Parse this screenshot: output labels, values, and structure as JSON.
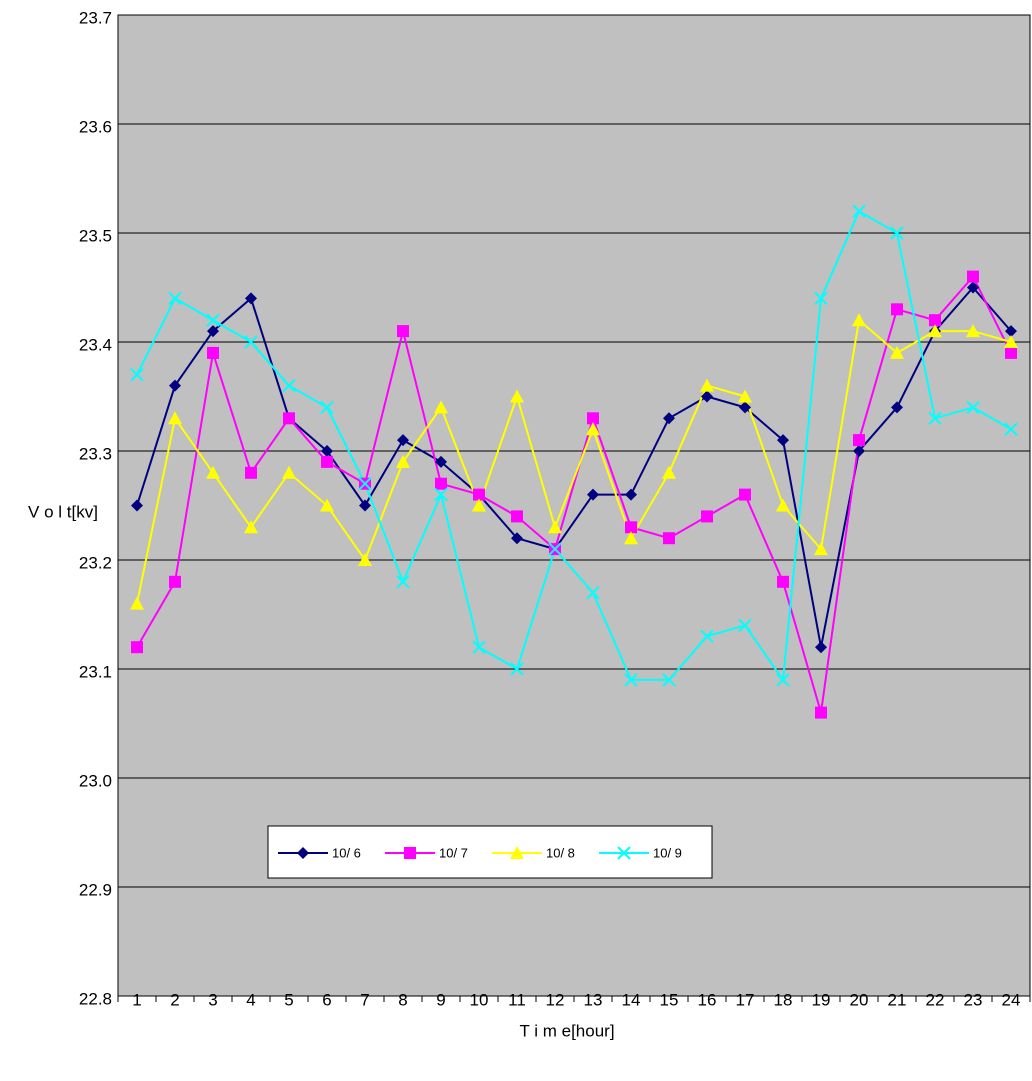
{
  "chart_data": {
    "type": "line",
    "x_label": "T i m e[hour]",
    "y_label": "V o l t[kv]",
    "categories": [
      "1",
      "2",
      "3",
      "4",
      "5",
      "6",
      "7",
      "8",
      "9",
      "10",
      "11",
      "12",
      "13",
      "14",
      "15",
      "16",
      "17",
      "18",
      "19",
      "20",
      "21",
      "22",
      "23",
      "24"
    ],
    "ylim": [
      22.8,
      23.7
    ],
    "yticks": [
      22.8,
      22.9,
      {
        "value": 23,
        "label": "23.0"
      },
      23.1,
      23.2,
      23.3,
      23.4,
      23.5,
      23.6,
      23.7
    ],
    "grid": true,
    "series": [
      {
        "name": "10/ 6",
        "color": "#000080",
        "marker": "diamond",
        "values": [
          23.25,
          23.36,
          23.41,
          23.44,
          23.33,
          23.3,
          23.25,
          23.31,
          23.29,
          23.26,
          23.22,
          23.21,
          23.26,
          23.26,
          23.33,
          23.35,
          23.34,
          23.31,
          23.12,
          23.3,
          23.34,
          23.41,
          23.45,
          23.41
        ]
      },
      {
        "name": "10/ 7",
        "color": "#ff00ff",
        "marker": "square",
        "values": [
          23.12,
          23.18,
          23.39,
          23.28,
          23.33,
          23.29,
          23.27,
          23.41,
          23.27,
          23.26,
          23.24,
          23.21,
          23.33,
          23.23,
          23.22,
          23.24,
          23.26,
          23.18,
          23.06,
          23.31,
          23.43,
          23.42,
          23.46,
          23.39
        ]
      },
      {
        "name": "10/ 8",
        "color": "#ffff00",
        "marker": "triangle",
        "values": [
          23.16,
          23.33,
          23.28,
          23.23,
          23.28,
          23.25,
          23.2,
          23.29,
          23.34,
          23.25,
          23.35,
          23.23,
          23.32,
          23.22,
          23.28,
          23.36,
          23.35,
          23.25,
          23.21,
          23.42,
          23.39,
          23.41,
          23.41,
          23.4
        ]
      },
      {
        "name": "10/ 9",
        "color": "#00ffff",
        "marker": "x",
        "values": [
          23.37,
          23.44,
          23.42,
          23.4,
          23.36,
          23.34,
          23.27,
          23.18,
          23.26,
          23.12,
          23.1,
          23.21,
          23.17,
          23.09,
          23.09,
          23.13,
          23.14,
          23.09,
          23.44,
          23.52,
          23.5,
          23.33,
          23.34,
          23.32
        ]
      }
    ]
  }
}
